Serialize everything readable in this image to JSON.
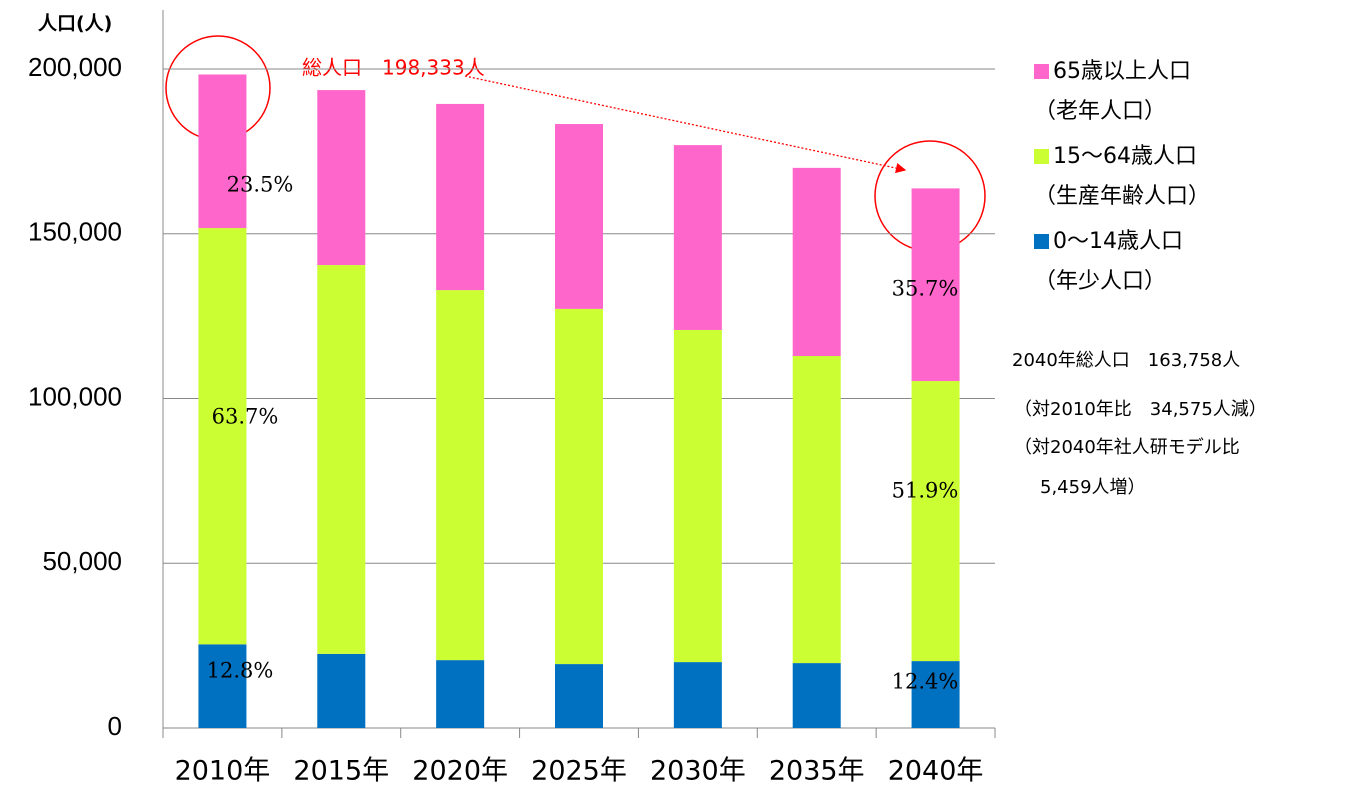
{
  "chart_data": {
    "type": "stacked_bar",
    "y_label": "人口(人)",
    "categories": [
      "2010年",
      "2015年",
      "2020年",
      "2025年",
      "2030年",
      "2035年",
      "2040年"
    ],
    "series": [
      {
        "name": "0〜14歳人口",
        "subname": "（年少人口）",
        "color": "#0070c0",
        "values": [
          25387,
          22500,
          20600,
          19400,
          20000,
          19700,
          20306
        ]
      },
      {
        "name": "15〜64歳人口",
        "subname": "（生産年齢人口）",
        "color": "#ccff33",
        "values": [
          126338,
          118000,
          112300,
          107800,
          100800,
          93200,
          84990
        ]
      },
      {
        "name": "65歳以上人口",
        "subname": "（老年人口）",
        "color": "#ff66cc",
        "values": [
          46608,
          53100,
          56500,
          56100,
          56100,
          57100,
          58462
        ]
      }
    ],
    "ylim": [
      0,
      200000
    ],
    "yticks": [
      0,
      {
        "value": 50000,
        "label": "50,000"
      },
      {
        "value": 100000,
        "label": "100,000"
      },
      {
        "value": 150000,
        "label": "150,000"
      },
      {
        "value": 200000,
        "label": "200,000"
      }
    ],
    "segment_labels": [
      [
        "12.8%",
        "63.7%",
        "23.5%"
      ],
      [
        "12.4%",
        "51.9%",
        "35.7%"
      ]
    ],
    "total_annotation": "総人口　198,333人",
    "notes": [
      "2040年総人口　163,758人",
      "（対2010年比　34,575人減）",
      "（対2040年社人研モデル比",
      "5,459人増）"
    ],
    "grid": true
  }
}
